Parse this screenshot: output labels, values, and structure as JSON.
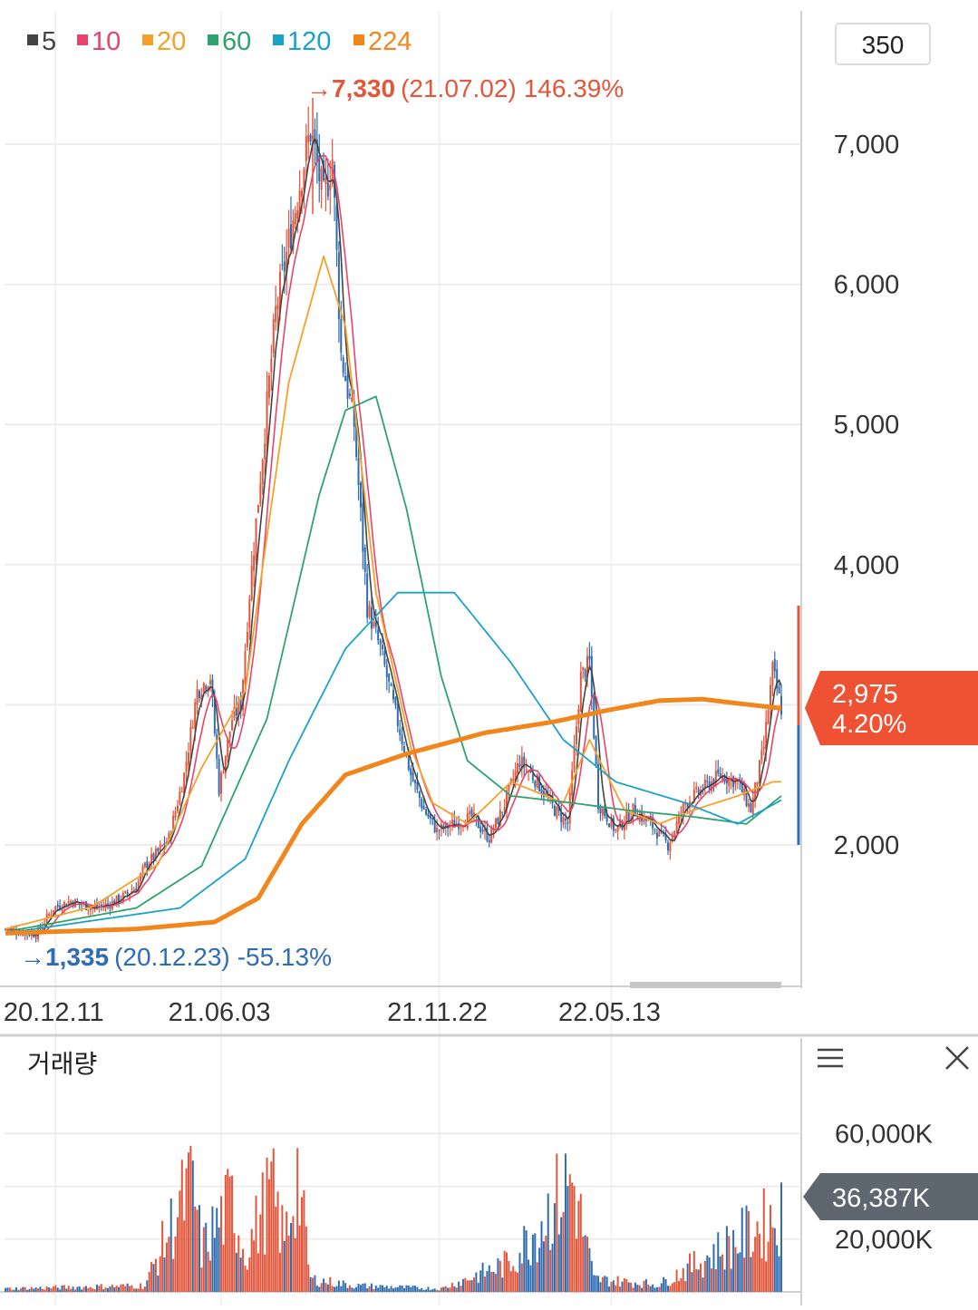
{
  "legend": [
    {
      "label": "5",
      "color": "#444444"
    },
    {
      "label": "10",
      "color": "#e8436a"
    },
    {
      "label": "20",
      "color": "#f4a12a"
    },
    {
      "label": "60",
      "color": "#2ea36d"
    },
    {
      "label": "120",
      "color": "#1aa3c8"
    },
    {
      "label": "224",
      "color": "#f0861c"
    }
  ],
  "period_button": "350",
  "annotations": {
    "high": {
      "arrow": "→",
      "price": "7,330",
      "date": "(21.07.02)",
      "pct": "146.39%",
      "color": "#e4553a"
    },
    "low": {
      "arrow": "→",
      "price": "1,335",
      "date": "(20.12.23)",
      "pct": "-55.13%",
      "color": "#2f6db3"
    }
  },
  "current": {
    "price": "2,975",
    "pct": "4.20%",
    "color": "#ef5232"
  },
  "volume_panel": {
    "title": "거래량",
    "current": "36,387K",
    "menu_icon": "menu-icon",
    "close_icon": "close-icon"
  },
  "colors": {
    "up": "#e4553a",
    "down": "#2f6db3",
    "grid": "#e9e9e9",
    "badge_dark": "#5e6770"
  },
  "chart_data": [
    {
      "type": "candlestick",
      "title": "",
      "x_ticks": [
        "20.12.11",
        "21.06.03",
        "21.11.22",
        "22.05.13"
      ],
      "y_ticks": [
        "2,000",
        "4,000",
        "5,000",
        "6,000",
        "7,000"
      ],
      "ylim": [
        1300,
        7500
      ],
      "grid": true,
      "price_keypoints": [
        [
          0,
          1400
        ],
        [
          14,
          1360
        ],
        [
          22,
          1550
        ],
        [
          30,
          1600
        ],
        [
          40,
          1550
        ],
        [
          48,
          1580
        ],
        [
          56,
          1650
        ],
        [
          60,
          1700
        ],
        [
          64,
          1850
        ],
        [
          70,
          1950
        ],
        [
          75,
          2050
        ],
        [
          82,
          2500
        ],
        [
          88,
          3100
        ],
        [
          94,
          3200
        ],
        [
          98,
          2400
        ],
        [
          104,
          2900
        ],
        [
          108,
          3000
        ],
        [
          112,
          3800
        ],
        [
          118,
          4800
        ],
        [
          124,
          5800
        ],
        [
          130,
          6300
        ],
        [
          136,
          6800
        ],
        [
          140,
          7100
        ],
        [
          146,
          6600
        ],
        [
          150,
          6900
        ],
        [
          154,
          5500
        ],
        [
          160,
          5000
        ],
        [
          166,
          3700
        ],
        [
          172,
          3400
        ],
        [
          178,
          3000
        ],
        [
          186,
          2500
        ],
        [
          192,
          2250
        ],
        [
          198,
          2100
        ],
        [
          206,
          2150
        ],
        [
          214,
          2200
        ],
        [
          222,
          2050
        ],
        [
          228,
          2250
        ],
        [
          236,
          2600
        ],
        [
          244,
          2450
        ],
        [
          252,
          2250
        ],
        [
          258,
          2150
        ],
        [
          264,
          3200
        ],
        [
          268,
          3300
        ],
        [
          272,
          2300
        ],
        [
          280,
          2100
        ],
        [
          288,
          2250
        ],
        [
          296,
          2150
        ],
        [
          304,
          2000
        ],
        [
          312,
          2300
        ],
        [
          320,
          2400
        ],
        [
          328,
          2500
        ],
        [
          336,
          2450
        ],
        [
          342,
          2250
        ],
        [
          348,
          2700
        ],
        [
          352,
          3250
        ],
        [
          356,
          2975
        ]
      ],
      "ma_keypoints": {
        "20": [
          [
            0,
            1400
          ],
          [
            40,
            1560
          ],
          [
            70,
            1860
          ],
          [
            90,
            2550
          ],
          [
            110,
            3100
          ],
          [
            130,
            5300
          ],
          [
            146,
            6200
          ],
          [
            156,
            5700
          ],
          [
            170,
            3800
          ],
          [
            186,
            2700
          ],
          [
            196,
            2300
          ],
          [
            212,
            2150
          ],
          [
            232,
            2450
          ],
          [
            256,
            2300
          ],
          [
            268,
            2750
          ],
          [
            284,
            2250
          ],
          [
            300,
            2150
          ],
          [
            316,
            2250
          ],
          [
            336,
            2350
          ],
          [
            352,
            2450
          ]
        ],
        "60": [
          [
            0,
            1380
          ],
          [
            60,
            1550
          ],
          [
            90,
            1850
          ],
          [
            120,
            2900
          ],
          [
            144,
            4500
          ],
          [
            156,
            5100
          ],
          [
            170,
            5200
          ],
          [
            184,
            4400
          ],
          [
            200,
            3200
          ],
          [
            212,
            2600
          ],
          [
            232,
            2350
          ],
          [
            260,
            2300
          ],
          [
            284,
            2250
          ],
          [
            316,
            2200
          ],
          [
            340,
            2150
          ],
          [
            356,
            2350
          ]
        ],
        "120": [
          [
            0,
            1370
          ],
          [
            80,
            1550
          ],
          [
            110,
            1900
          ],
          [
            130,
            2600
          ],
          [
            156,
            3400
          ],
          [
            180,
            3800
          ],
          [
            206,
            3800
          ],
          [
            232,
            3300
          ],
          [
            256,
            2750
          ],
          [
            280,
            2450
          ],
          [
            312,
            2300
          ],
          [
            336,
            2150
          ],
          [
            356,
            2320
          ]
        ],
        "224": [
          [
            0,
            1370
          ],
          [
            60,
            1400
          ],
          [
            96,
            1450
          ],
          [
            116,
            1620
          ],
          [
            136,
            2150
          ],
          [
            156,
            2500
          ],
          [
            184,
            2650
          ],
          [
            220,
            2800
          ],
          [
            252,
            2880
          ],
          [
            276,
            2960
          ],
          [
            300,
            3030
          ],
          [
            320,
            3040
          ],
          [
            336,
            3010
          ],
          [
            356,
            2975
          ]
        ]
      }
    },
    {
      "type": "bar",
      "title": "거래량",
      "y_ticks": [
        "20,000K",
        "60,000K"
      ],
      "ylim": [
        0,
        80000
      ],
      "volume_keypoints": [
        [
          0,
          1500
        ],
        [
          64,
          3000
        ],
        [
          80,
          40000
        ],
        [
          86,
          50000
        ],
        [
          90,
          20000
        ],
        [
          96,
          30000
        ],
        [
          104,
          42000
        ],
        [
          110,
          18000
        ],
        [
          116,
          33000
        ],
        [
          122,
          48000
        ],
        [
          128,
          24000
        ],
        [
          134,
          56000
        ],
        [
          140,
          6000
        ],
        [
          160,
          3000
        ],
        [
          200,
          1500
        ],
        [
          232,
          14000
        ],
        [
          260,
          53000
        ],
        [
          270,
          6000
        ],
        [
          300,
          3500
        ],
        [
          356,
          36387
        ]
      ]
    }
  ]
}
